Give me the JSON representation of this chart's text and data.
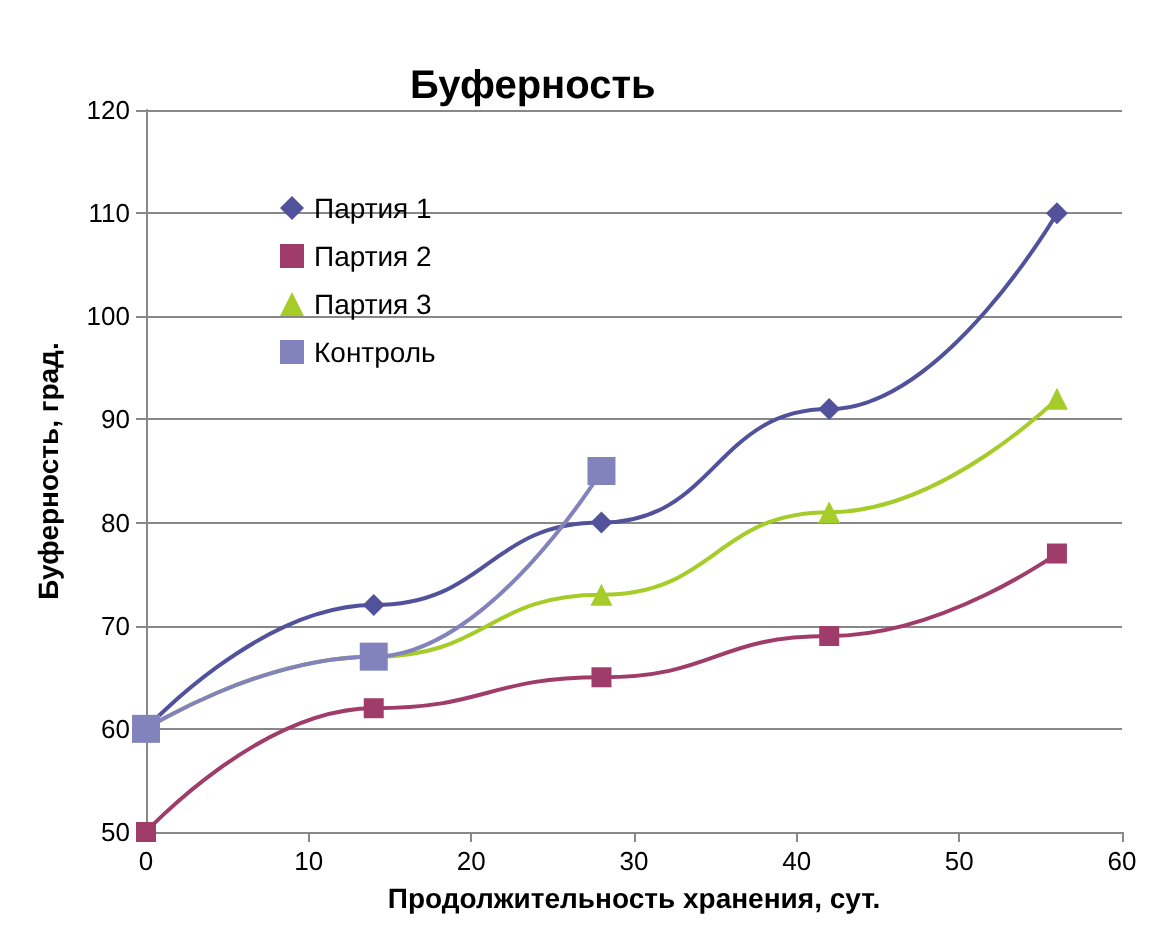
{
  "chart_data": {
    "type": "line",
    "title": "Буферность",
    "xlabel": "Продолжительность хранения, сут.",
    "ylabel": "Буферность, град.",
    "xlim": [
      0,
      60
    ],
    "xticks": [
      0,
      10,
      20,
      30,
      40,
      50,
      60
    ],
    "ylim": [
      50,
      120
    ],
    "yticks": [
      50,
      60,
      70,
      80,
      90,
      100,
      110,
      120
    ],
    "grid": "y",
    "legend": "top left",
    "line_style": "solid",
    "series": [
      {
        "name": "Партия 1",
        "color": "#52529c",
        "marker": "diamond",
        "x": [
          0,
          14,
          28,
          42,
          56
        ],
        "values": [
          60,
          72,
          80,
          91,
          110
        ]
      },
      {
        "name": "Партия 2",
        "color": "#a03c6a",
        "marker": "square",
        "x": [
          0,
          14,
          28,
          42,
          56
        ],
        "values": [
          50,
          62,
          65,
          69,
          77
        ]
      },
      {
        "name": "Партия 3",
        "color": "#a6cc2a",
        "marker": "triangle",
        "x": [
          0,
          14,
          28,
          42,
          56
        ],
        "values": [
          60,
          67,
          73,
          81,
          92
        ]
      },
      {
        "name": "Контроль",
        "color": "#8282bc",
        "marker": "square",
        "x": [
          0,
          14,
          28
        ],
        "values": [
          60,
          67,
          85
        ]
      }
    ]
  }
}
